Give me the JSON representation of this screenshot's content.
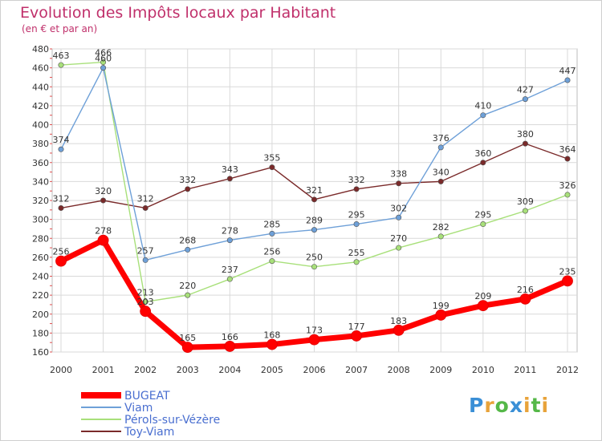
{
  "chart_data": {
    "type": "line",
    "title": "Evolution des Impôts locaux par Habitant",
    "subtitle": "(en € et par an)",
    "x": [
      "2000",
      "2001",
      "2002",
      "2003",
      "2004",
      "2005",
      "2006",
      "2007",
      "2008",
      "2009",
      "2010",
      "2011",
      "2012"
    ],
    "ylim": [
      160,
      480
    ],
    "yticks": [
      160,
      180,
      200,
      220,
      240,
      260,
      280,
      300,
      320,
      340,
      360,
      380,
      400,
      420,
      440,
      460,
      480
    ],
    "grid": true,
    "legend_position": "bottom-left",
    "series": [
      {
        "name": "BUGEAT",
        "color": "#ff0000",
        "values": [
          256,
          278,
          203,
          165,
          166,
          168,
          173,
          177,
          183,
          199,
          209,
          216,
          235
        ]
      },
      {
        "name": "Viam",
        "color": "#6ea0d8",
        "values": [
          374,
          460,
          257,
          268,
          278,
          285,
          289,
          295,
          302,
          376,
          410,
          427,
          447
        ]
      },
      {
        "name": "Pérols-sur-Vézère",
        "color": "#a8e07a",
        "values": [
          463,
          466,
          213,
          220,
          237,
          256,
          250,
          255,
          270,
          282,
          295,
          309,
          326
        ]
      },
      {
        "name": "Toy-Viam",
        "color": "#7a2a2a",
        "values": [
          312,
          320,
          312,
          332,
          343,
          355,
          321,
          332,
          338,
          340,
          360,
          380,
          364
        ]
      }
    ]
  },
  "brand": {
    "letters": [
      "P",
      "r",
      "o",
      "x",
      "i",
      "t",
      "i"
    ],
    "colors": [
      "#3a8fd6",
      "#e8a33a",
      "#55b848",
      "#3a8fd6",
      "#e8a33a",
      "#55b848",
      "#e8a33a"
    ]
  }
}
